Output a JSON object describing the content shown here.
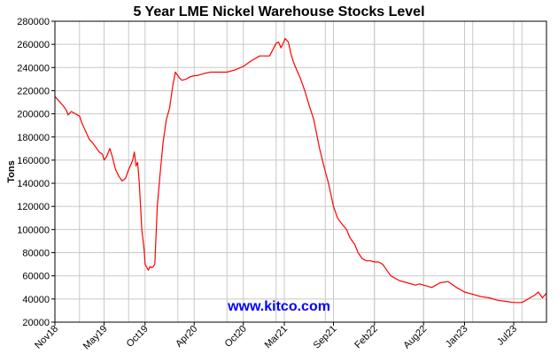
{
  "chart_data": {
    "type": "line",
    "title": "5 Year LME Nickel Warehouse Stocks Level",
    "ylabel": "Tons",
    "xlabel": "",
    "watermark": "www.kitco.com",
    "ylim": [
      20000,
      280000
    ],
    "yticks": [
      20000,
      40000,
      60000,
      80000,
      100000,
      120000,
      140000,
      160000,
      180000,
      200000,
      220000,
      240000,
      260000,
      280000
    ],
    "xlim": [
      0,
      60
    ],
    "xticks": [
      {
        "label": "Nov18",
        "t": 0
      },
      {
        "label": "May19",
        "t": 6
      },
      {
        "label": "Oct19",
        "t": 11
      },
      {
        "label": "Apr20",
        "t": 17
      },
      {
        "label": "Oct20",
        "t": 23
      },
      {
        "label": "Mar21",
        "t": 28
      },
      {
        "label": "Sep21",
        "t": 34
      },
      {
        "label": "Feb22",
        "t": 39
      },
      {
        "label": "Aug22",
        "t": 45
      },
      {
        "label": "Jan23",
        "t": 50
      },
      {
        "label": "Jul23",
        "t": 56
      }
    ],
    "grid": true,
    "series": [
      {
        "color": "#ff0000",
        "x": [
          0,
          0.5,
          1,
          1.4,
          1.6,
          2,
          2.5,
          3,
          3.3,
          3.8,
          4.2,
          4.6,
          5,
          5.4,
          5.8,
          6,
          6.3,
          6.7,
          7,
          7.4,
          7.8,
          8.2,
          8.6,
          8.9,
          9.2,
          9.5,
          9.7,
          9.9,
          10.1,
          10.3,
          10.6,
          10.9,
          11,
          11.4,
          11.6,
          11.8,
          12.0,
          12.2,
          12.5,
          12.8,
          13.2,
          13.6,
          14,
          14.4,
          14.7,
          15.2,
          15.5,
          16,
          16.5,
          17,
          17.3,
          17.8,
          18.3,
          19,
          20,
          21,
          22,
          23,
          24,
          25,
          25.6,
          26.2,
          27,
          27.3,
          27.6,
          27.8,
          28.1,
          28.5,
          28.8,
          29.1,
          29.5,
          30,
          30.5,
          31,
          31.6,
          32.3,
          33,
          33.4,
          34,
          34.5,
          35,
          35.6,
          36,
          36.6,
          37,
          37.5,
          38,
          38.5,
          39,
          39.5,
          40,
          40.5,
          41,
          42,
          43,
          44,
          44.5,
          45,
          46,
          47,
          48,
          49,
          50,
          51,
          52,
          53,
          54,
          55,
          56,
          57,
          58,
          58.5,
          59,
          59.5,
          60
        ],
        "values": [
          215000,
          211000,
          207000,
          203000,
          199000,
          202000,
          200000,
          198000,
          192000,
          184000,
          178000,
          175000,
          171000,
          167000,
          165000,
          160000,
          163000,
          170000,
          163000,
          152000,
          146000,
          142000,
          144000,
          150000,
          155000,
          160000,
          167000,
          155000,
          158000,
          140000,
          100000,
          82000,
          70000,
          65000,
          68000,
          67000,
          68000,
          70000,
          120000,
          145000,
          175000,
          195000,
          205000,
          225000,
          236000,
          231000,
          229000,
          230000,
          232000,
          233000,
          233000,
          234000,
          235000,
          236000,
          236000,
          236000,
          238000,
          241000,
          246000,
          250000,
          250000,
          250000,
          261000,
          262000,
          257000,
          260000,
          265000,
          262000,
          252000,
          245000,
          238000,
          230000,
          220000,
          208000,
          195000,
          170000,
          150000,
          140000,
          120000,
          110000,
          105000,
          100000,
          93000,
          87000,
          80000,
          75000,
          73000,
          73000,
          72000,
          72000,
          70000,
          65000,
          60000,
          56000,
          54000,
          52000,
          53000,
          52000,
          50000,
          54000,
          55000,
          50000,
          46000,
          44000,
          42000,
          41000,
          39000,
          38000,
          37000,
          37000,
          41000,
          43000,
          46000,
          41000,
          45000
        ]
      }
    ]
  }
}
